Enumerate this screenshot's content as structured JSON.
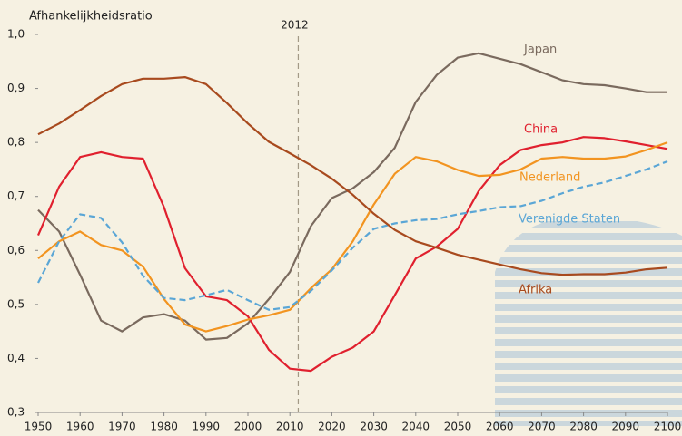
{
  "chart_data": {
    "type": "line",
    "y_label": "Afhankelijkheidsratio",
    "x": [
      1950,
      1955,
      1960,
      1965,
      1970,
      1975,
      1980,
      1985,
      1990,
      1995,
      2000,
      2005,
      2010,
      2015,
      2020,
      2025,
      2030,
      2035,
      2040,
      2045,
      2050,
      2055,
      2060,
      2065,
      2070,
      2075,
      2080,
      2085,
      2090,
      2095,
      2100
    ],
    "series": [
      {
        "name": "Japan",
        "color": "#7a6a5e",
        "dashed": false,
        "values": [
          0.675,
          0.635,
          0.555,
          0.47,
          0.45,
          0.476,
          0.482,
          0.47,
          0.435,
          0.438,
          0.465,
          0.51,
          0.56,
          0.645,
          0.697,
          0.715,
          0.745,
          0.79,
          0.875,
          0.925,
          0.957,
          0.965,
          0.955,
          0.945,
          0.93,
          0.915,
          0.908,
          0.906,
          0.9,
          0.893,
          0.893
        ]
      },
      {
        "name": "China",
        "color": "#e0202e",
        "dashed": false,
        "values": [
          0.628,
          0.718,
          0.773,
          0.782,
          0.773,
          0.77,
          0.68,
          0.567,
          0.515,
          0.508,
          0.478,
          0.416,
          0.381,
          0.377,
          0.403,
          0.42,
          0.45,
          0.517,
          0.585,
          0.607,
          0.64,
          0.71,
          0.758,
          0.786,
          0.795,
          0.8,
          0.81,
          0.808,
          0.802,
          0.795,
          0.788
        ]
      },
      {
        "name": "Nederland",
        "color": "#f29420",
        "dashed": false,
        "values": [
          0.585,
          0.617,
          0.635,
          0.61,
          0.6,
          0.57,
          0.51,
          0.463,
          0.45,
          0.46,
          0.472,
          0.48,
          0.49,
          0.53,
          0.565,
          0.617,
          0.685,
          0.742,
          0.773,
          0.765,
          0.749,
          0.738,
          0.74,
          0.75,
          0.77,
          0.773,
          0.77,
          0.77,
          0.774,
          0.786,
          0.8
        ]
      },
      {
        "name": "Verenigde Staten",
        "color": "#5aa6d6",
        "dashed": true,
        "values": [
          0.54,
          0.617,
          0.667,
          0.66,
          0.615,
          0.553,
          0.512,
          0.508,
          0.517,
          0.527,
          0.508,
          0.49,
          0.495,
          0.525,
          0.563,
          0.605,
          0.64,
          0.65,
          0.656,
          0.658,
          0.667,
          0.673,
          0.68,
          0.682,
          0.692,
          0.706,
          0.718,
          0.726,
          0.738,
          0.75,
          0.765
        ]
      },
      {
        "name": "Afrika",
        "color": "#a84a1e",
        "dashed": false,
        "values": [
          0.815,
          0.835,
          0.86,
          0.886,
          0.908,
          0.918,
          0.918,
          0.921,
          0.908,
          0.873,
          0.835,
          0.801,
          0.78,
          0.758,
          0.733,
          0.703,
          0.668,
          0.638,
          0.617,
          0.605,
          0.592,
          0.583,
          0.574,
          0.565,
          0.558,
          0.555,
          0.556,
          0.556,
          0.559,
          0.565,
          0.568
        ]
      }
    ],
    "marker_x": 2012,
    "xlim": [
      1950,
      2100
    ],
    "xticks": [
      1950,
      1960,
      1970,
      1980,
      1990,
      2000,
      2010,
      2020,
      2030,
      2040,
      2050,
      2060,
      2070,
      2080,
      2090,
      2100
    ],
    "ylim": [
      0.3,
      1.0
    ],
    "yticks": [
      {
        "value": 0.3,
        "label": "0,3"
      },
      {
        "value": 0.4,
        "label": "0,4"
      },
      {
        "value": 0.5,
        "label": "0,5"
      },
      {
        "value": 0.6,
        "label": "0,6"
      },
      {
        "value": 0.7,
        "label": "0,7"
      },
      {
        "value": 0.8,
        "label": "0,8"
      },
      {
        "value": 0.9,
        "label": "0,9"
      },
      {
        "value": 1.0,
        "label": "1,0"
      }
    ],
    "grid": false
  }
}
